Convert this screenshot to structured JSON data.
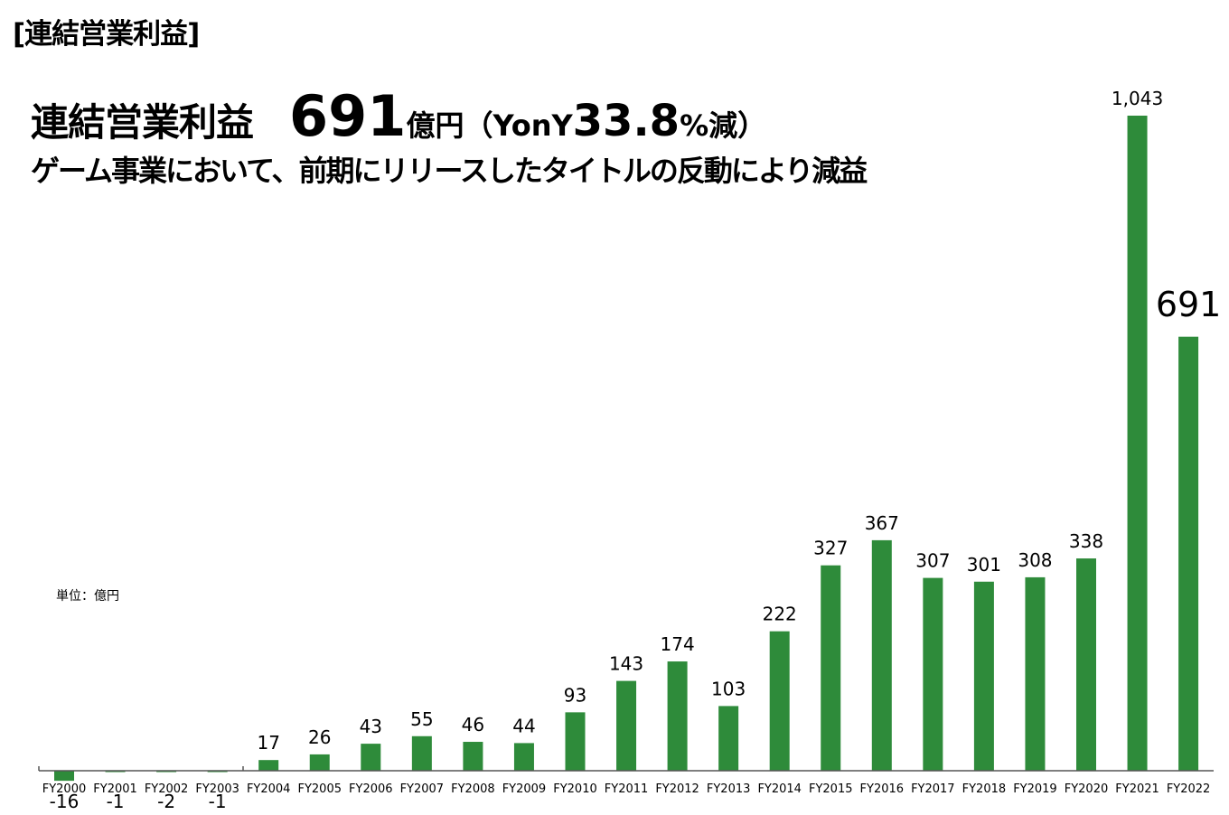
{
  "section_title": "[連結営業利益]",
  "headline": {
    "label": "連結営業利益",
    "value": "691",
    "unit": "億円",
    "paren_open": "（",
    "yoy_prefix": "YonY",
    "yoy_value": "33.8",
    "yoy_suffix": "%減",
    "paren_close": "）"
  },
  "subheadline": "ゲーム事業において、前期にリリースしたタイトルの反動により減益",
  "unit_note": "単位：億円",
  "colors": {
    "bar": "#2e8b3a",
    "axis": "#555555"
  },
  "chart_data": {
    "type": "bar",
    "title": "連結営業利益",
    "ylabel": "億円",
    "categories": [
      "FY2000",
      "FY2001",
      "FY2002",
      "FY2003",
      "FY2004",
      "FY2005",
      "FY2006",
      "FY2007",
      "FY2008",
      "FY2009",
      "FY2010",
      "FY2011",
      "FY2012",
      "FY2013",
      "FY2014",
      "FY2015",
      "FY2016",
      "FY2017",
      "FY2018",
      "FY2019",
      "FY2020",
      "FY2021",
      "FY2022"
    ],
    "values": [
      -16,
      -1,
      -2,
      -1,
      17,
      26,
      43,
      55,
      46,
      44,
      93,
      143,
      174,
      103,
      222,
      327,
      367,
      307,
      301,
      308,
      338,
      1043,
      691
    ],
    "labels": [
      "-16",
      "-1",
      "-2",
      "-1",
      "17",
      "26",
      "43",
      "55",
      "46",
      "44",
      "93",
      "143",
      "174",
      "103",
      "222",
      "327",
      "367",
      "307",
      "301",
      "308",
      "338",
      "1,043",
      "691"
    ],
    "ylim": [
      -20,
      1100
    ],
    "grid": false
  }
}
